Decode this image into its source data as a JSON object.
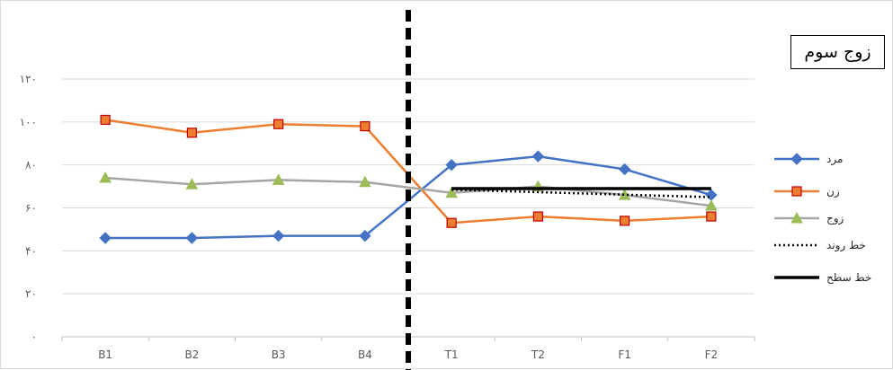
{
  "chart_data": {
    "type": "line",
    "title": "زوج سوم",
    "categories": [
      "B1",
      "B2",
      "B3",
      "B4",
      "T1",
      "T2",
      "F1",
      "F2"
    ],
    "y_ticks": [
      "۰",
      "۲۰",
      "۴۰",
      "۶۰",
      "۸۰",
      "۱۰۰",
      "۱۲۰"
    ],
    "ylim": [
      0,
      120
    ],
    "grid": "horizontal",
    "legend_position": "right",
    "series": [
      {
        "name": "مرد",
        "color": "#4472c4",
        "marker": "diamond",
        "values": [
          46,
          46,
          47,
          47,
          80,
          84,
          78,
          66
        ]
      },
      {
        "name": "زن",
        "color": "#ed7d31",
        "marker": "square",
        "values": [
          101,
          95,
          99,
          98,
          53,
          56,
          54,
          56
        ]
      },
      {
        "name": "زوج",
        "color": "#a5a5a5",
        "marker": "triangle",
        "values": [
          74,
          71,
          73,
          72,
          67,
          70,
          66,
          61
        ]
      },
      {
        "name": "خط روند",
        "color": "#000000",
        "style": "dotted",
        "x_start": "T1",
        "x_end": "F2",
        "values_at_ends": [
          68.5,
          65
        ]
      },
      {
        "name": "خط سطح",
        "color": "#000000",
        "style": "solid",
        "x_start": "T1",
        "x_end": "F2",
        "values_at_ends": [
          69,
          69
        ]
      }
    ],
    "phase_divider": {
      "between": [
        "B4",
        "T1"
      ],
      "style": "dashed",
      "color": "#000000"
    }
  }
}
